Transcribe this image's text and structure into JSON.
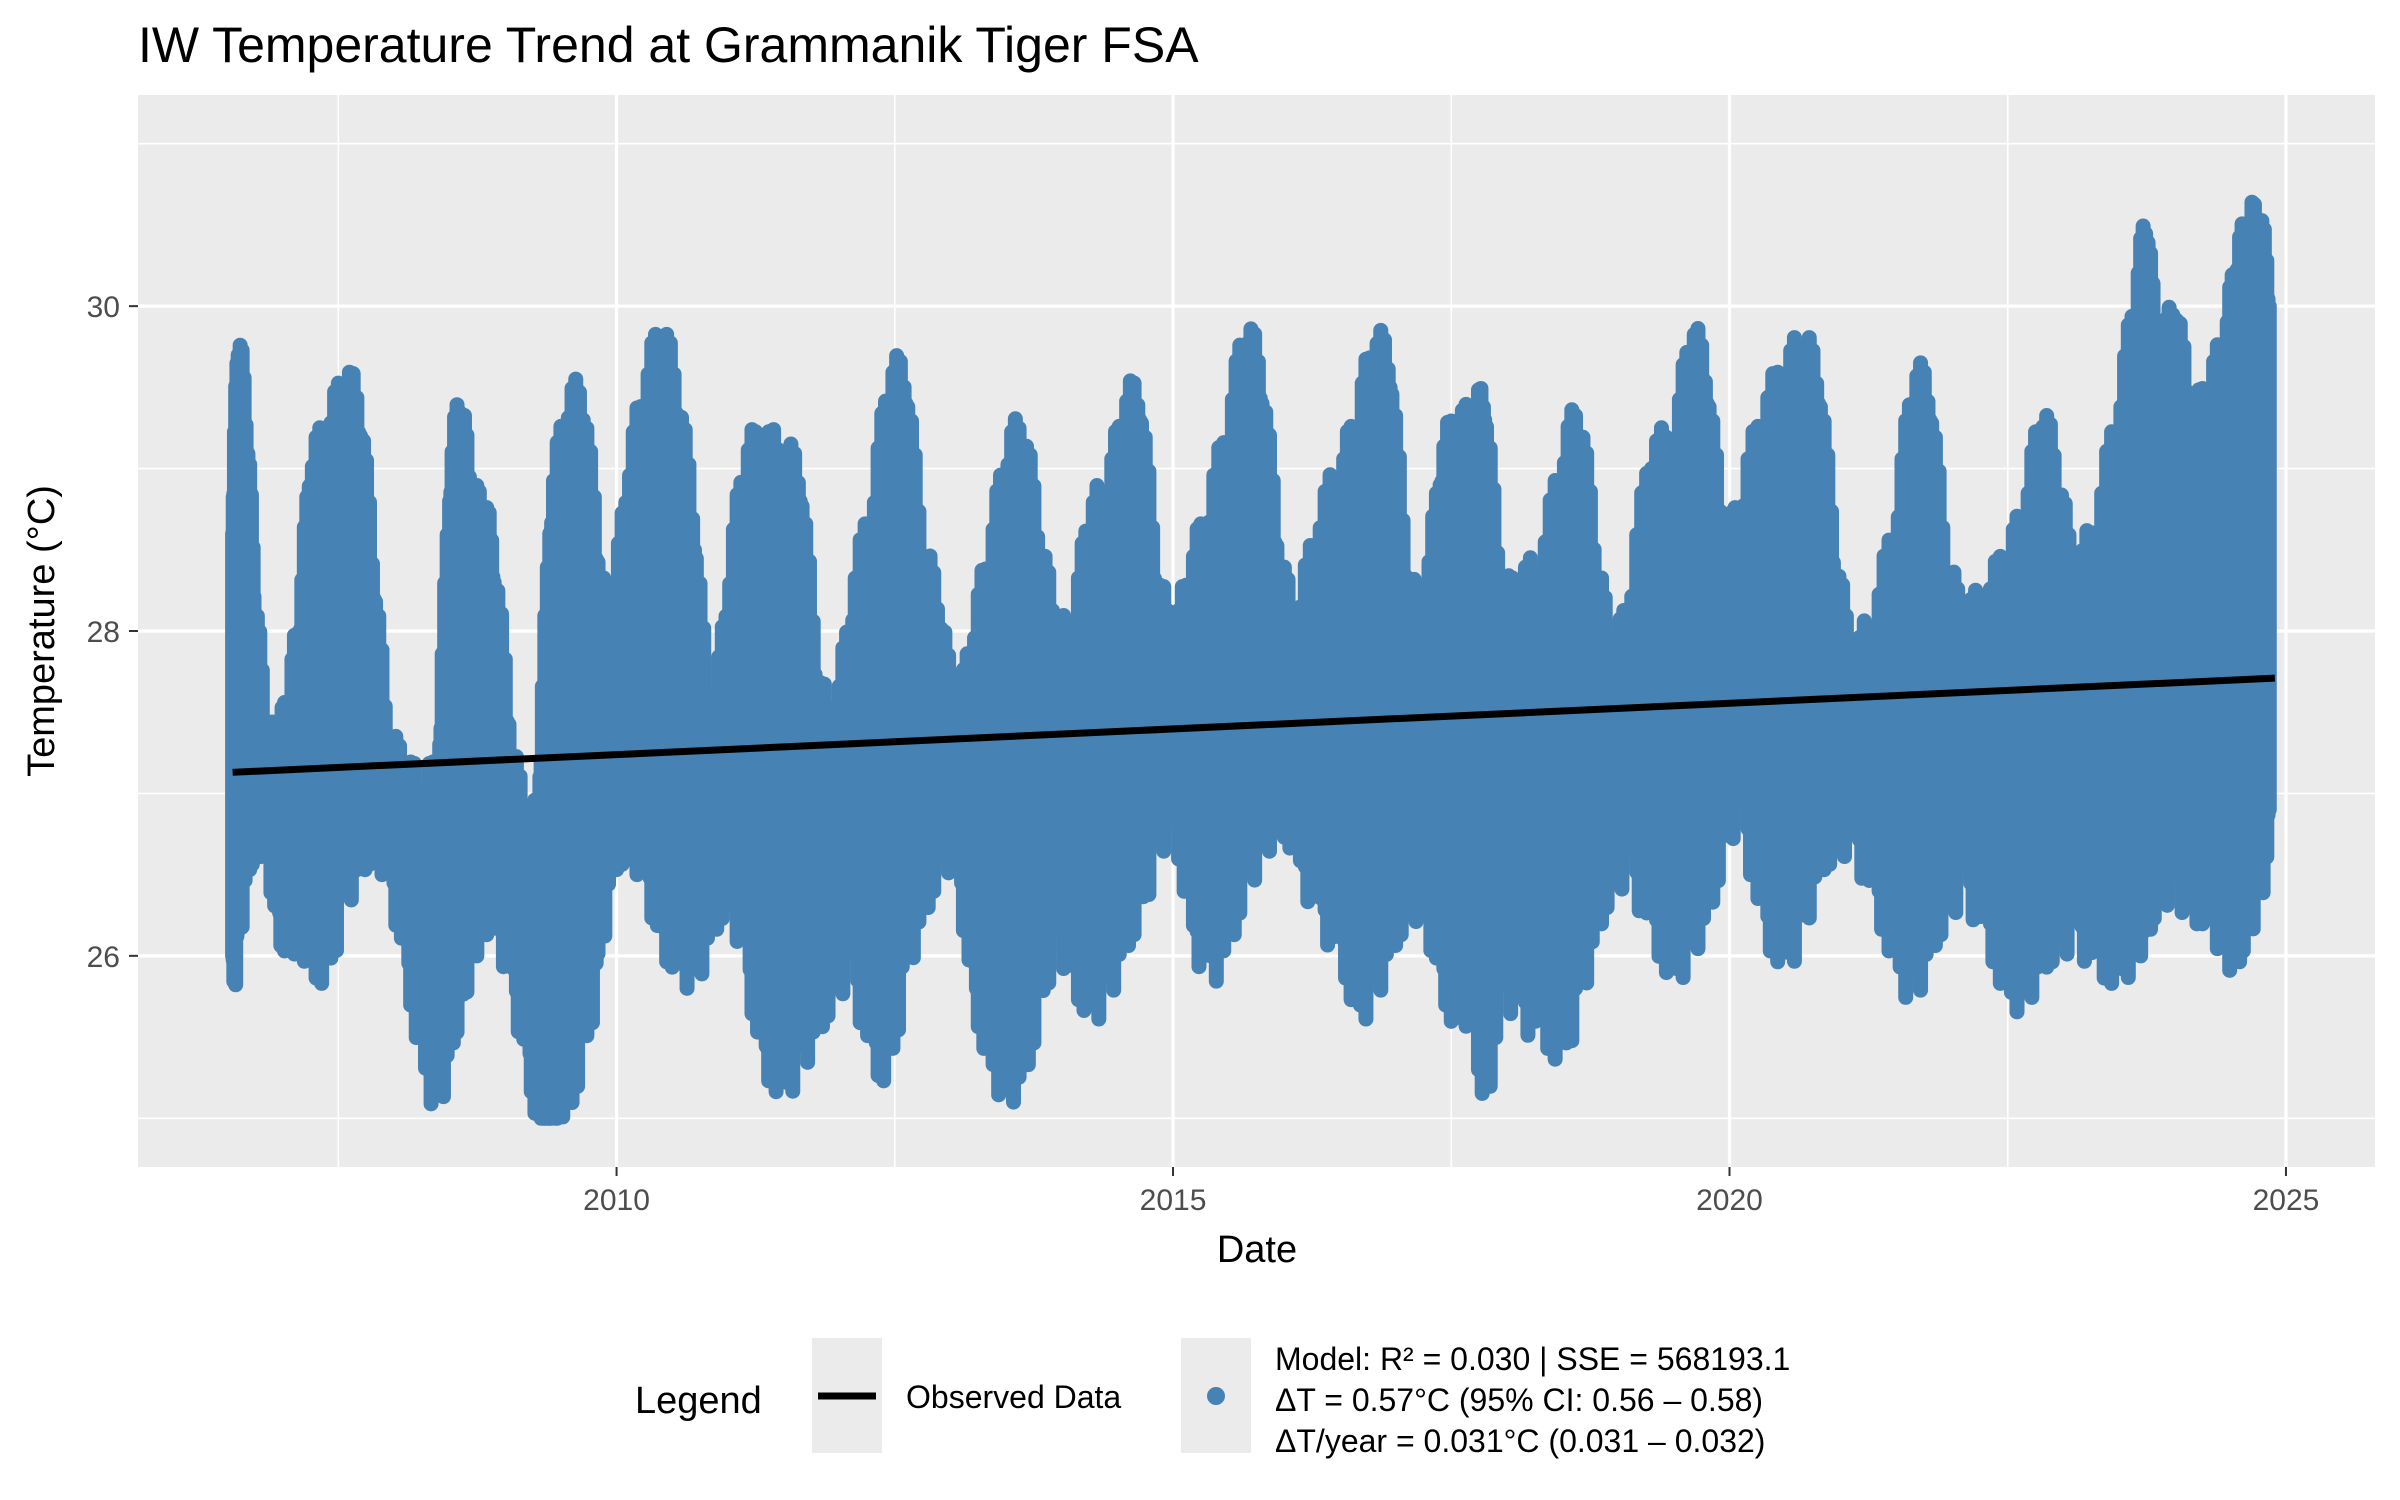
{
  "chart_data": {
    "type": "scatter",
    "title": "IW Temperature Trend at Grammanik Tiger FSA",
    "xlabel": "Date",
    "ylabel": "Temperature (°C)",
    "xlim": [
      2005.7,
      2025.8
    ],
    "ylim": [
      24.7,
      31.3
    ],
    "x_ticks": [
      {
        "value": 2010,
        "label": "2010"
      },
      {
        "value": 2015,
        "label": "2015"
      },
      {
        "value": 2020,
        "label": "2020"
      },
      {
        "value": 2025,
        "label": "2025"
      }
    ],
    "y_ticks": [
      {
        "value": 26,
        "label": "26"
      },
      {
        "value": 28,
        "label": "28"
      },
      {
        "value": 30,
        "label": "30"
      }
    ],
    "grid": true,
    "background": "#ebebeb",
    "point_color": "#4682b4",
    "line_color": "#000000",
    "series": [
      {
        "kind": "points",
        "x": [
          2006.55,
          2006.6,
          2006.68,
          2006.75,
          2006.85,
          2006.95,
          2007.05,
          2007.15,
          2007.25,
          2007.4,
          2007.55,
          2007.7,
          2007.82,
          2007.95,
          2008.1,
          2008.25,
          2008.4,
          2008.5,
          2008.6,
          2008.7,
          2008.8,
          2008.9,
          2009.05,
          2009.2,
          2009.3,
          2009.4,
          2009.55,
          2009.7,
          2009.85,
          2009.95,
          2010.1,
          2010.25,
          2010.4,
          2010.55,
          2010.7,
          2010.85,
          2011.0,
          2011.15,
          2011.3,
          2011.5,
          2011.65,
          2011.8,
          2011.95,
          2012.1,
          2012.3,
          2012.45,
          2012.6,
          2012.75,
          2012.9,
          2013.05,
          2013.2,
          2013.35,
          2013.5,
          2013.65,
          2013.8,
          2013.95,
          2014.1,
          2014.25,
          2014.4,
          2014.55,
          2014.7,
          2014.85,
          2015.0,
          2015.15,
          2015.3,
          2015.5,
          2015.65,
          2015.8,
          2015.95,
          2016.1,
          2016.3,
          2016.5,
          2016.65,
          2016.8,
          2016.95,
          2017.1,
          2017.25,
          2017.4,
          2017.55,
          2017.7,
          2017.8,
          2017.95,
          2018.1,
          2018.3,
          2018.5,
          2018.65,
          2018.8,
          2018.95,
          2019.1,
          2019.3,
          2019.5,
          2019.65,
          2019.8,
          2019.95,
          2020.1,
          2020.3,
          2020.5,
          2020.65,
          2020.8,
          2020.95,
          2021.1,
          2021.3,
          2021.5,
          2021.65,
          2021.8,
          2021.95,
          2022.1,
          2022.3,
          2022.5,
          2022.65,
          2022.8,
          2022.95,
          2023.1,
          2023.3,
          2023.5,
          2023.65,
          2023.75,
          2023.85,
          2024.0,
          2024.15,
          2024.3,
          2024.45,
          2024.55,
          2024.65,
          2024.75,
          2024.85
        ],
        "y_low": [
          26.0,
          26.3,
          26.8,
          26.9,
          27.0,
          26.4,
          26.3,
          26.4,
          26.2,
          26.1,
          26.6,
          26.8,
          26.9,
          26.8,
          26.2,
          25.6,
          25.3,
          25.7,
          25.9,
          26.3,
          26.4,
          26.5,
          26.1,
          25.6,
          25.2,
          25.0,
          25.3,
          25.6,
          26.2,
          26.8,
          26.9,
          26.8,
          26.3,
          26.2,
          26.1,
          26.4,
          26.6,
          26.3,
          25.6,
          25.4,
          25.6,
          25.8,
          26.0,
          26.2,
          25.6,
          25.5,
          26.2,
          26.5,
          26.8,
          26.9,
          26.0,
          25.6,
          25.4,
          25.5,
          25.9,
          26.4,
          26.1,
          25.9,
          26.0,
          26.3,
          26.5,
          26.9,
          27.1,
          26.5,
          26.1,
          26.3,
          26.7,
          26.9,
          27.1,
          26.9,
          26.5,
          26.3,
          25.9,
          26.0,
          26.3,
          26.5,
          26.6,
          26.1,
          25.8,
          26.0,
          25.2,
          26.1,
          25.9,
          25.8,
          25.6,
          26.0,
          26.4,
          26.7,
          26.8,
          26.4,
          26.1,
          26.3,
          26.5,
          26.9,
          27.2,
          26.4,
          26.2,
          26.4,
          26.8,
          26.9,
          27.0,
          26.6,
          26.2,
          26.0,
          26.3,
          26.5,
          26.7,
          26.4,
          26.0,
          26.0,
          26.2,
          26.3,
          26.4,
          26.2,
          26.1,
          26.3,
          26.4,
          26.6,
          26.7,
          26.5,
          26.5,
          26.3,
          26.2,
          26.4,
          26.6,
          26.9
        ],
        "y_high": [
          28.6,
          29.7,
          29.1,
          28.1,
          27.2,
          27.1,
          27.4,
          27.9,
          28.9,
          29.0,
          29.4,
          29.2,
          28.2,
          27.1,
          27.0,
          26.8,
          27.0,
          28.8,
          29.3,
          28.6,
          28.6,
          28.3,
          27.2,
          26.5,
          26.8,
          28.6,
          29.2,
          29.3,
          28.2,
          27.8,
          28.8,
          29.3,
          29.7,
          29.3,
          28.5,
          27.1,
          28.1,
          28.9,
          29.0,
          28.9,
          28.8,
          27.6,
          27.1,
          28.0,
          28.6,
          29.4,
          29.4,
          28.3,
          28.0,
          27.2,
          27.8,
          28.3,
          28.9,
          29.1,
          28.4,
          27.8,
          27.8,
          28.6,
          28.6,
          29.2,
          29.3,
          28.2,
          27.7,
          28.2,
          28.5,
          29.1,
          29.7,
          29.4,
          28.3,
          27.8,
          28.5,
          28.8,
          29.1,
          29.6,
          29.5,
          28.2,
          27.8,
          28.9,
          29.1,
          29.1,
          29.3,
          28.0,
          28.1,
          28.2,
          28.9,
          29.2,
          28.3,
          27.6,
          28.0,
          29.0,
          28.9,
          29.7,
          29.4,
          28.3,
          28.6,
          29.2,
          29.4,
          29.6,
          29.4,
          28.3,
          27.6,
          27.9,
          28.5,
          29.4,
          29.3,
          28.2,
          27.9,
          28.0,
          28.3,
          28.5,
          29.2,
          28.8,
          28.1,
          28.5,
          29.2,
          29.9,
          30.4,
          29.4,
          29.9,
          29.1,
          29.3,
          29.6,
          30.1,
          30.3,
          30.4,
          30.0
        ]
      },
      {
        "kind": "line",
        "x": [
          2006.55,
          2024.9
        ],
        "y": [
          27.13,
          27.71
        ]
      }
    ],
    "legend": {
      "position": "bottom",
      "title": "Legend",
      "line_label": "Observed Data",
      "point_label_lines": [
        "Model: R² = 0.030 | SSE = 568193.1",
        "ΔT = 0.57°C (95% CI: 0.56 – 0.58)",
        "ΔT/year = 0.031°C (0.031 – 0.032)"
      ]
    }
  }
}
